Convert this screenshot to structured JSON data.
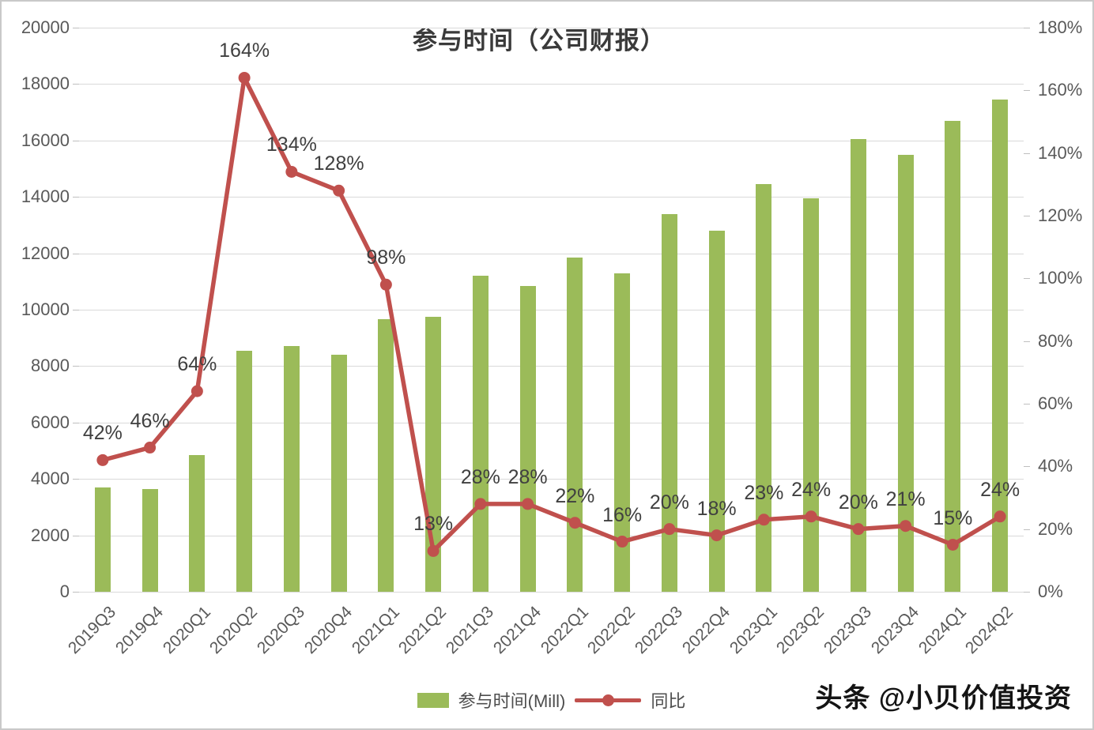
{
  "title": "参与时间（公司财报）",
  "watermark": "头条 @小贝价值投资",
  "legend": {
    "bar_label": "参与时间(Mill)",
    "line_label": "同比"
  },
  "colors": {
    "bar": "#9BBB59",
    "line": "#C0504D",
    "grid": "#D9D9D9",
    "axis_text": "#595959",
    "point_label_text": "#404040",
    "title_text": "#3A3A3A"
  },
  "chart_data": {
    "type": "bar",
    "subtype": "combo-bar-line-dual-axis",
    "title": "参与时间（公司财报）",
    "categories": [
      "2019Q3",
      "2019Q4",
      "2020Q1",
      "2020Q2",
      "2020Q3",
      "2020Q4",
      "2021Q1",
      "2021Q2",
      "2021Q3",
      "2021Q4",
      "2022Q1",
      "2022Q2",
      "2022Q3",
      "2022Q4",
      "2023Q1",
      "2023Q2",
      "2023Q3",
      "2023Q4",
      "2024Q1",
      "2024Q2"
    ],
    "series": [
      {
        "name": "参与时间(Mill)",
        "type": "bar",
        "axis": "left",
        "values": [
          3700,
          3650,
          4850,
          8550,
          8700,
          8400,
          9650,
          9750,
          11200,
          10850,
          11850,
          11300,
          13400,
          12800,
          14450,
          13950,
          16050,
          15500,
          16700,
          17450
        ]
      },
      {
        "name": "同比",
        "type": "line",
        "axis": "right",
        "values": [
          42,
          46,
          64,
          164,
          134,
          128,
          98,
          13,
          28,
          28,
          22,
          16,
          20,
          18,
          23,
          24,
          20,
          21,
          15,
          24
        ],
        "point_labels": [
          "42%",
          "46%",
          "64%",
          "164%",
          "134%",
          "128%",
          "98%",
          "13%",
          "28%",
          "28%",
          "22%",
          "16%",
          "20%",
          "18%",
          "23%",
          "24%",
          "20%",
          "21%",
          "15%",
          "24%"
        ]
      }
    ],
    "left_axis": {
      "min": 0,
      "max": 20000,
      "step": 2000,
      "tick_labels": [
        "0",
        "2000",
        "4000",
        "6000",
        "8000",
        "10000",
        "12000",
        "14000",
        "16000",
        "18000",
        "20000"
      ]
    },
    "right_axis": {
      "min": 0,
      "max": 180,
      "step": 20,
      "tick_labels": [
        "0%",
        "20%",
        "40%",
        "60%",
        "80%",
        "100%",
        "120%",
        "140%",
        "160%",
        "180%"
      ]
    },
    "grid": "horizontal-only",
    "legend_position": "bottom-center",
    "xlabel": "",
    "ylabel": ""
  }
}
